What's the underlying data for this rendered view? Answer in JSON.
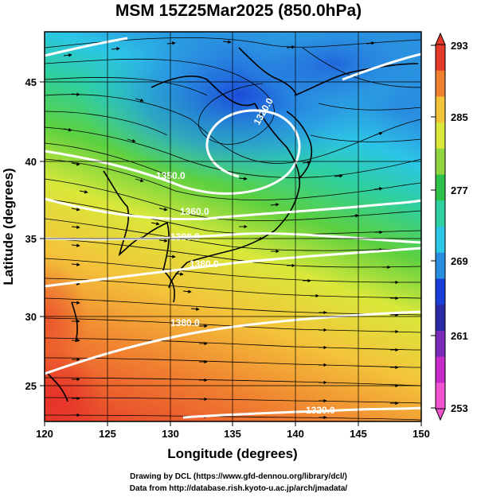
{
  "title": "MSM 15Z25Mar2025 (850.0hPa)",
  "x_axis": {
    "label": "Longitude (degrees)",
    "ticks": [
      "120",
      "125",
      "130",
      "135",
      "140",
      "145",
      "150"
    ],
    "range": [
      120,
      150
    ]
  },
  "y_axis": {
    "label": "Latitude  (degrees)",
    "ticks": [
      "25",
      "30",
      "35",
      "40",
      "45"
    ],
    "range": [
      22.4,
      47.6
    ]
  },
  "colorbar": {
    "ticks": [
      "293",
      "285",
      "277",
      "269",
      "261",
      "253"
    ],
    "colors": [
      "#e53a2a",
      "#f08030",
      "#f3c43a",
      "#d9e83a",
      "#8fd640",
      "#2fc24a",
      "#2ecfa0",
      "#2cc6e6",
      "#2a8ee0",
      "#1a3fd8",
      "#2a2aa8",
      "#7a2ab8",
      "#c62ac8",
      "#f052d0"
    ]
  },
  "contour_labels": [
    "1320.0",
    "1350.0",
    "1360.0",
    "1380.0",
    "1380.0",
    "1380.0",
    "1320.0"
  ],
  "footer": {
    "line1": "Drawing by DCL (https://www.gfd-dennou.org/library/dcl/)",
    "line2": "Data from http://database.rish.kyoto-u.ac.jp/arch/jmadata/"
  }
}
